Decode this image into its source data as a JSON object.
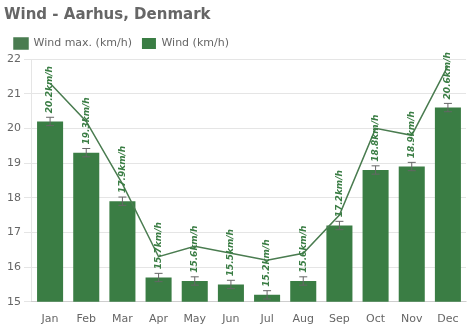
{
  "chart_data": {
    "type": "bar",
    "title": "Wind - Aarhus, Denmark",
    "categories": [
      "Jan",
      "Feb",
      "Mar",
      "Apr",
      "May",
      "Jun",
      "Jul",
      "Aug",
      "Sep",
      "Oct",
      "Nov",
      "Dec"
    ],
    "series": [
      {
        "name": "Wind (km/h)",
        "type": "bar",
        "color": "#3a7d44",
        "values": [
          20.2,
          19.3,
          17.9,
          15.7,
          15.6,
          15.5,
          15.2,
          15.6,
          17.2,
          18.8,
          18.9,
          20.6
        ],
        "errors": [
          0.12,
          0.12,
          0.12,
          0.12,
          0.12,
          0.12,
          0.12,
          0.12,
          0.12,
          0.12,
          0.12,
          0.12
        ],
        "data_labels": true,
        "value_labels": [
          "20.2km/h",
          "19.3km/h",
          "17.9km/h",
          "15.7km/h",
          "15.6km/h",
          "15.5km/h",
          "15.2km/h",
          "15.6km/h",
          "17.2km/h",
          "18.8km/h",
          "18.9km/h",
          "20.6km/h"
        ]
      },
      {
        "name": "Wind max. (km/h)",
        "type": "line",
        "color": "#4a7c50",
        "marker": "none",
        "values": [
          21.3,
          20.2,
          18.4,
          16.3,
          16.6,
          16.4,
          16.2,
          16.4,
          17.5,
          20.0,
          19.8,
          21.8
        ]
      }
    ],
    "ylim": [
      15,
      22
    ],
    "yticks": [
      15,
      16,
      17,
      18,
      19,
      20,
      21,
      22
    ],
    "grid": true,
    "legend": "upper left"
  }
}
